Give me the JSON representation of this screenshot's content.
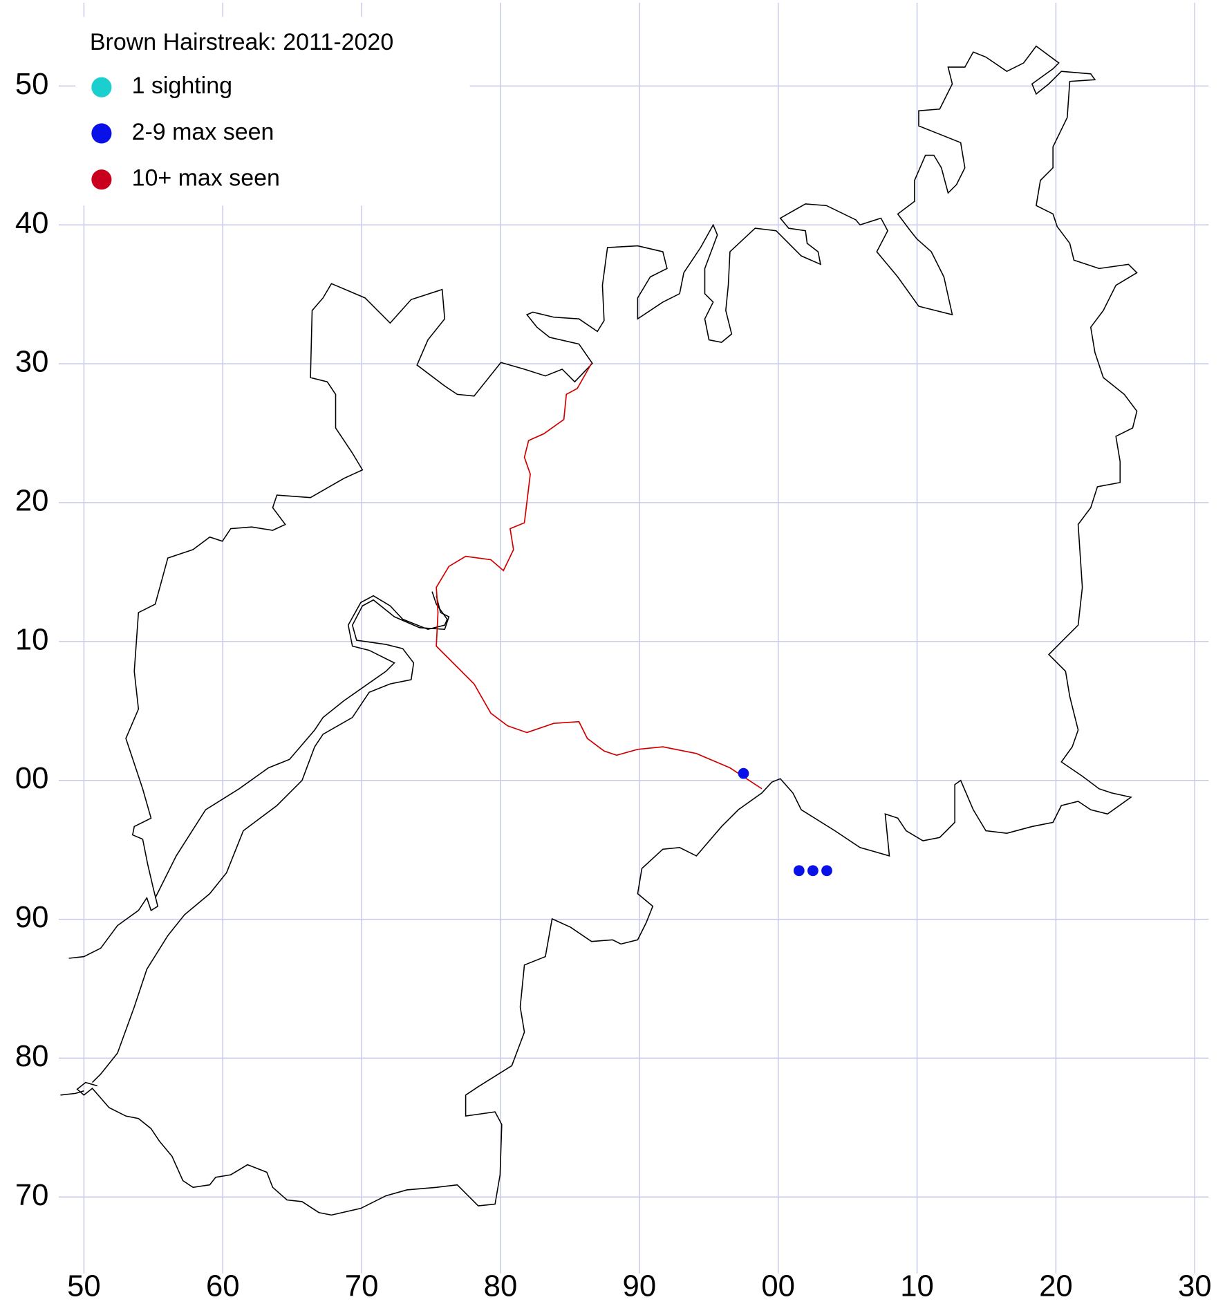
{
  "chart_data": {
    "type": "scatter",
    "title": "Brown Hairstreak:  2011-2020",
    "xlim": [
      49,
      131
    ],
    "ylim": [
      64.5,
      156
    ],
    "xticks": [
      50,
      60,
      70,
      80,
      90,
      {
        "value": 100,
        "label": "00"
      },
      {
        "value": 110,
        "label": "10"
      },
      {
        "value": 120,
        "label": "20"
      },
      {
        "value": 130,
        "label": "30"
      }
    ],
    "yticks": [
      70,
      80,
      90,
      {
        "value": 100,
        "label": "00"
      },
      {
        "value": 110,
        "label": "10"
      },
      {
        "value": 120,
        "label": "20"
      },
      {
        "value": 130,
        "label": "30"
      },
      {
        "value": 140,
        "label": "40"
      },
      {
        "value": 150,
        "label": "50"
      }
    ],
    "grid": true,
    "legend": "upper-left",
    "series": [
      {
        "name": "1 sighting",
        "color": "#1ccfcf",
        "x": [],
        "values": []
      },
      {
        "name": "2-9 max seen",
        "color": "#0a10e8",
        "x": [
          97.5,
          101.5,
          102.5,
          103.5
        ],
        "values": [
          100.5,
          93.5,
          93.5,
          93.5
        ]
      },
      {
        "name": "10+ max seen",
        "color": "#c8001e",
        "x": [],
        "values": []
      }
    ]
  }
}
